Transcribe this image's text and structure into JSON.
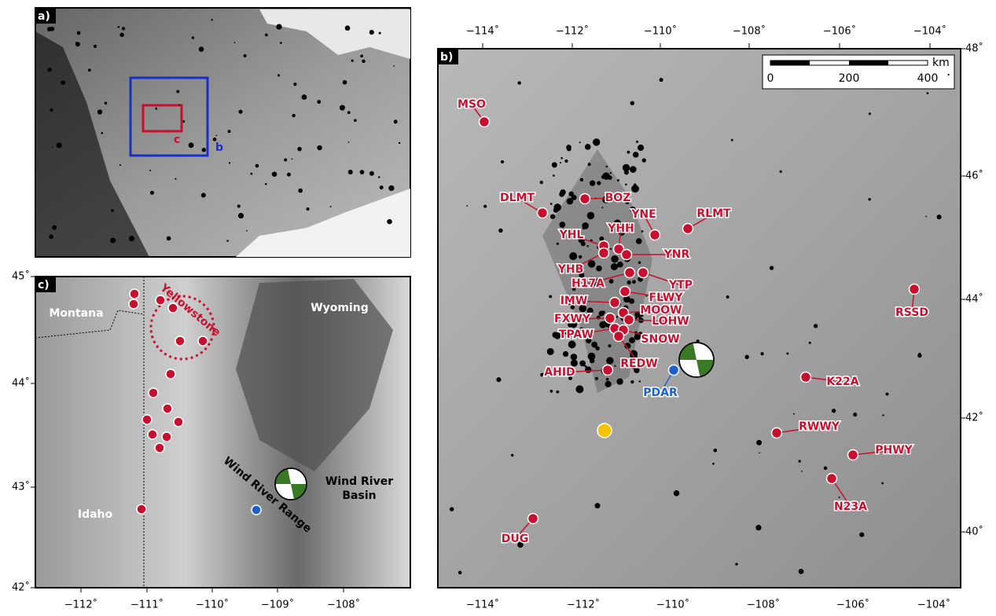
{
  "panel_a": {
    "label": "a)",
    "box_labels": [
      "b",
      "c"
    ]
  },
  "panel_b": {
    "label": "b)",
    "lon_ticks": [
      "−114˚",
      "−112˚",
      "−110˚",
      "−108˚",
      "−106˚",
      "−104˚"
    ],
    "lat_ticks": [
      "48˚",
      "46˚",
      "44˚",
      "42˚",
      "40˚"
    ],
    "scale_bar": {
      "unit": "km",
      "ticks": [
        "0",
        "200",
        "400"
      ]
    },
    "stations": [
      "MSO",
      "BOZ",
      "DLMT",
      "YNE",
      "RLMT",
      "YHH",
      "YHL",
      "YNR",
      "YHB",
      "H17A",
      "YTP",
      "IMW",
      "FLWY",
      "MOOW",
      "FXWY",
      "LOHW",
      "TPAW",
      "SNOW",
      "REDW",
      "AHID",
      "K22A",
      "RWWY",
      "PHWY",
      "N23A",
      "RSSD",
      "DUG"
    ],
    "array": "PDAR"
  },
  "panel_c": {
    "label": "c)",
    "lat_ticks": [
      "45˚",
      "44˚",
      "43˚",
      "42˚"
    ],
    "lon_ticks": [
      "−112˚",
      "−111˚",
      "−110˚",
      "−109˚",
      "−108˚"
    ],
    "regions": [
      "Montana",
      "Wyoming",
      "Idaho",
      "Wind River Range",
      "Yellowstone"
    ],
    "basin": [
      "Wind River",
      "Basin"
    ]
  }
}
